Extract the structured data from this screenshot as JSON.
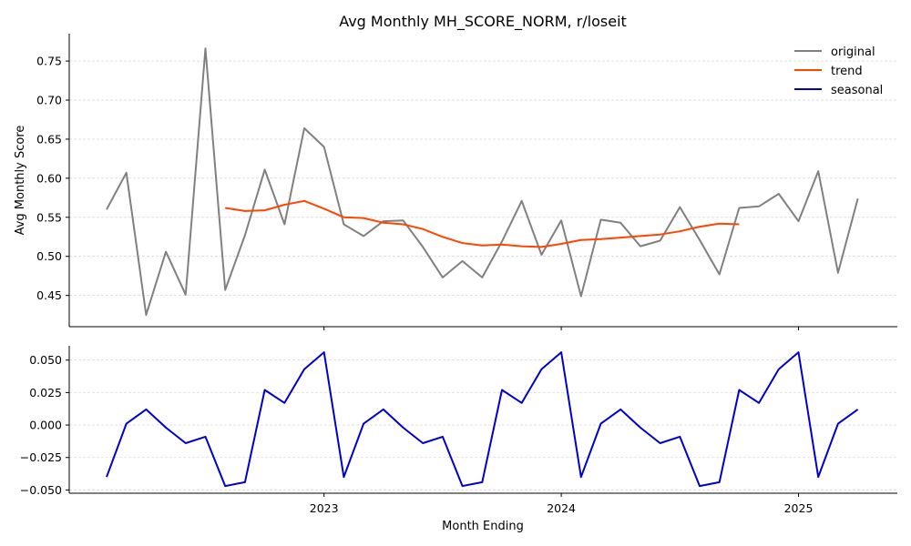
{
  "chart_data": [
    {
      "type": "line",
      "title": "Avg Monthly MH_SCORE_NORM, r/loseit",
      "ylabel": "Avg Monthly Score",
      "xlabel": "",
      "ylim": [
        0.41,
        0.785
      ],
      "yticks": [
        "0.45",
        "0.50",
        "0.55",
        "0.60",
        "0.65",
        "0.70",
        "0.75"
      ],
      "grid": "horizontal dashed",
      "legend_position": "top-right",
      "x": [
        "2022-02",
        "2022-03",
        "2022-04",
        "2022-05",
        "2022-06",
        "2022-07",
        "2022-08",
        "2022-09",
        "2022-10",
        "2022-11",
        "2022-12",
        "2023-01",
        "2023-02",
        "2023-03",
        "2023-04",
        "2023-05",
        "2023-06",
        "2023-07",
        "2023-08",
        "2023-09",
        "2023-10",
        "2023-11",
        "2023-12",
        "2024-01",
        "2024-02",
        "2024-03",
        "2024-04",
        "2024-05",
        "2024-06",
        "2024-07",
        "2024-08",
        "2024-09",
        "2024-10",
        "2024-11",
        "2024-12",
        "2025-01",
        "2025-02",
        "2025-03",
        "2025-04"
      ],
      "series": [
        {
          "name": "original",
          "color": "#808080",
          "values": [
            0.56,
            0.607,
            0.425,
            0.506,
            0.451,
            0.766,
            0.457,
            0.527,
            0.611,
            0.541,
            0.664,
            0.64,
            0.541,
            0.526,
            0.545,
            0.546,
            0.512,
            0.473,
            0.494,
            0.473,
            0.519,
            0.571,
            0.502,
            0.546,
            0.449,
            0.547,
            0.543,
            0.513,
            0.52,
            0.563,
            0.521,
            0.477,
            0.562,
            0.564,
            0.58,
            0.545,
            0.609,
            0.479,
            0.574
          ]
        },
        {
          "name": "trend",
          "color": "#ff4500",
          "values": [
            null,
            null,
            null,
            null,
            null,
            null,
            0.562,
            0.558,
            0.559,
            0.566,
            0.571,
            0.561,
            0.55,
            0.549,
            0.543,
            0.541,
            0.535,
            0.525,
            0.517,
            0.514,
            0.515,
            0.513,
            0.512,
            0.516,
            0.521,
            0.522,
            0.524,
            0.526,
            0.528,
            0.532,
            0.538,
            0.542,
            0.541,
            null,
            null,
            null,
            null,
            null,
            null
          ]
        }
      ]
    },
    {
      "type": "line",
      "title": "",
      "xlabel": "Month Ending",
      "ylabel": "",
      "ylim": [
        -0.0525,
        0.061
      ],
      "yticks": [
        "0.050",
        "0.025",
        "0.000",
        "−0.025",
        "−0.050"
      ],
      "xticks": [
        "2023",
        "2024",
        "2025"
      ],
      "grid": "horizontal dashed",
      "series": [
        {
          "name": "seasonal",
          "color": "#0000cd",
          "values": [
            -0.04,
            0.001,
            0.012,
            -0.002,
            -0.014,
            -0.009,
            -0.047,
            -0.044,
            0.027,
            0.017,
            0.043,
            0.056,
            -0.04,
            0.001,
            0.012,
            -0.002,
            -0.014,
            -0.009,
            -0.047,
            -0.044,
            0.027,
            0.017,
            0.043,
            0.056,
            -0.04,
            0.001,
            0.012,
            -0.002,
            -0.014,
            -0.009,
            -0.047,
            -0.044,
            0.027,
            0.017,
            0.043,
            0.056,
            -0.04,
            0.001,
            0.012
          ]
        }
      ]
    }
  ]
}
